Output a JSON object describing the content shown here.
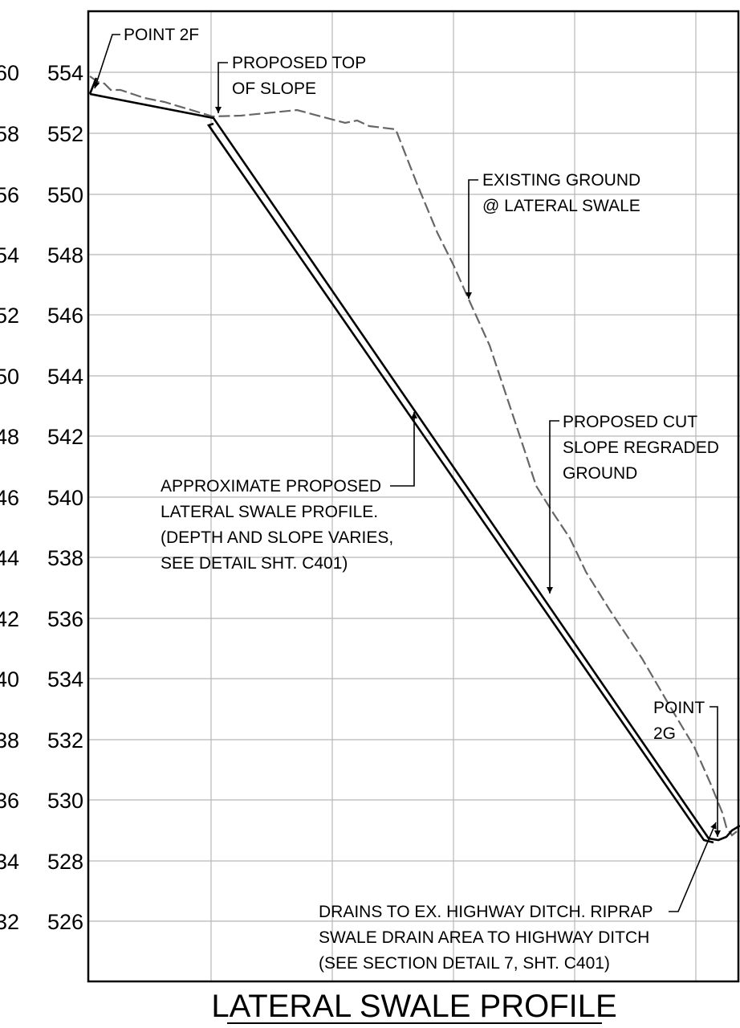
{
  "profile": {
    "title": "LATERAL SWALE PROFILE",
    "elevations_primary": [
      "554",
      "552",
      "550",
      "548",
      "546",
      "544",
      "542",
      "540",
      "538",
      "536",
      "534",
      "532",
      "530",
      "528",
      "526"
    ],
    "elevations_secondary": [
      "60",
      "58",
      "56",
      "54",
      "52",
      "50",
      "48",
      "46",
      "44",
      "42",
      "40",
      "38",
      "36",
      "34",
      "32"
    ],
    "notes": {
      "point_2f": "POINT 2F",
      "top_of_slope": [
        "PROPOSED TOP",
        "OF SLOPE"
      ],
      "existing_ground": [
        "EXISTING GROUND",
        "@ LATERAL SWALE"
      ],
      "proposed_cut": [
        "PROPOSED CUT",
        "SLOPE REGRADED",
        "GROUND"
      ],
      "swale_profile": [
        "APPROXIMATE PROPOSED",
        "LATERAL SWALE PROFILE.",
        "(DEPTH AND SLOPE VARIES,",
        "SEE DETAIL SHT. C401)"
      ],
      "point_2g": [
        "POINT",
        "2G"
      ],
      "drains": [
        "DRAINS TO EX. HIGHWAY DITCH. RIPRAP",
        "SWALE DRAIN AREA TO HIGHWAY DITCH",
        "(SEE SECTION DETAIL 7, SHT. C401)"
      ]
    },
    "line_styles": {
      "proposed": "solid double line",
      "existing": "dashed gray line"
    },
    "colors": {
      "proposed_line": "#000000",
      "existing_ground": "#666666",
      "grid": "#b8b8b8",
      "border": "#000000"
    }
  }
}
